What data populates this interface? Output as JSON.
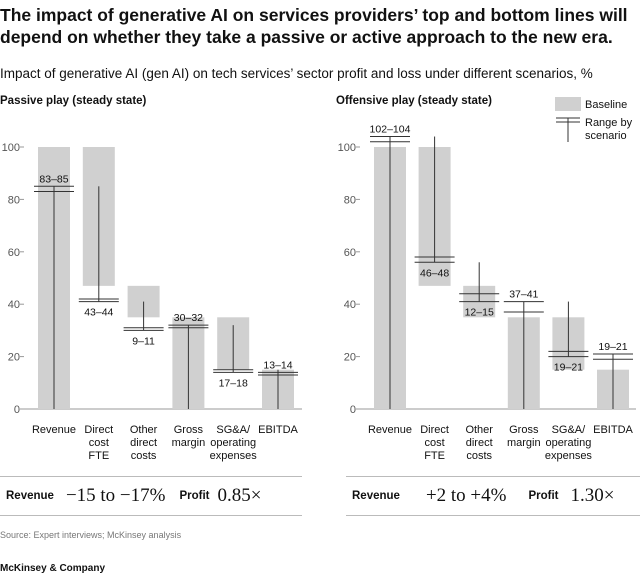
{
  "title": "The impact of generative AI on services providers’ top and bottom lines will depend on whether they take a passive or active approach to the new era.",
  "subtitle": "Impact of generative AI (gen AI) on tech services’ sector profit and loss under different scenarios, %",
  "legend": {
    "baseline": "Baseline",
    "range_line1": "Range by",
    "range_line2": "scenario"
  },
  "colors": {
    "baseline_bar": "#d0d0d0",
    "range_line": "#333333",
    "axis": "#999999"
  },
  "chart_data": [
    {
      "type": "bar",
      "title": "Passive play (steady state)",
      "ylim": [
        0,
        100
      ],
      "yticks": [
        "0",
        "20",
        "40",
        "60",
        "80",
        "100"
      ],
      "categories": [
        [
          "Revenue"
        ],
        [
          "Direct",
          "cost",
          "FTE"
        ],
        [
          "Other",
          "direct",
          "costs"
        ],
        [
          "Gross",
          "margin"
        ],
        [
          "SG&A/",
          "operating",
          "expenses"
        ],
        [
          "EBITDA"
        ]
      ],
      "baseline": [
        {
          "bottom": 0,
          "top": 100
        },
        {
          "bottom": 47,
          "top": 100
        },
        {
          "bottom": 35,
          "top": 47
        },
        {
          "bottom": 0,
          "top": 35
        },
        {
          "bottom": 15,
          "top": 35
        },
        {
          "bottom": 0,
          "top": 15
        }
      ],
      "ranges": [
        {
          "low": 0,
          "high": 85,
          "lines": [
            83,
            85
          ],
          "label": "83–85",
          "label_pos": "below_high"
        },
        {
          "low": 41,
          "high": 85,
          "lines": [
            41,
            42
          ],
          "label": "43–44",
          "label_pos": "below_low"
        },
        {
          "low": 30,
          "high": 41,
          "lines": [
            30,
            31
          ],
          "label": "9–11",
          "label_pos": "below_low"
        },
        {
          "low": 0,
          "high": 32,
          "lines": [
            31,
            32
          ],
          "label": "30–32",
          "label_pos": "above_high"
        },
        {
          "low": 14,
          "high": 32,
          "lines": [
            14,
            15
          ],
          "label": "17–18",
          "label_pos": "below_low"
        },
        {
          "low": 0,
          "high": 15,
          "lines": [
            13,
            14
          ],
          "label": "13–14",
          "label_pos": "above_high"
        }
      ],
      "summary": {
        "revenue_label": "Revenue",
        "revenue_value": "−15 to −17%",
        "profit_label": "Profit",
        "profit_value": "0.85×"
      }
    },
    {
      "type": "bar",
      "title": "Offensive play (steady state)",
      "ylim": [
        0,
        100
      ],
      "yticks": [
        "0",
        "20",
        "40",
        "60",
        "80",
        "100"
      ],
      "categories": [
        [
          "Revenue"
        ],
        [
          "Direct",
          "cost",
          "FTE"
        ],
        [
          "Other",
          "direct",
          "costs"
        ],
        [
          "Gross",
          "margin"
        ],
        [
          "SG&A/",
          "operating",
          "expenses"
        ],
        [
          "EBITDA"
        ]
      ],
      "baseline": [
        {
          "bottom": 0,
          "top": 100
        },
        {
          "bottom": 47,
          "top": 100
        },
        {
          "bottom": 35,
          "top": 47
        },
        {
          "bottom": 0,
          "top": 35
        },
        {
          "bottom": 15,
          "top": 35
        },
        {
          "bottom": 0,
          "top": 15
        }
      ],
      "ranges": [
        {
          "low": 0,
          "high": 104,
          "lines": [
            102,
            104
          ],
          "label": "102–104",
          "label_pos": "above_high"
        },
        {
          "low": 56,
          "high": 104,
          "lines": [
            56,
            58
          ],
          "label": "46–48",
          "label_pos": "below_low"
        },
        {
          "low": 41,
          "high": 56,
          "lines": [
            41,
            44
          ],
          "label": "12–15",
          "label_pos": "below_low"
        },
        {
          "low": 0,
          "high": 41,
          "lines": [
            37,
            41
          ],
          "label": "37–41",
          "label_pos": "above_high"
        },
        {
          "low": 20,
          "high": 41,
          "lines": [
            20,
            22
          ],
          "label": "19–21",
          "label_pos": "below_low"
        },
        {
          "low": 0,
          "high": 21,
          "lines": [
            19,
            21
          ],
          "label": "19–21",
          "label_pos": "above_high"
        }
      ],
      "summary": {
        "revenue_label": "Revenue",
        "revenue_value": "+2 to +4%",
        "profit_label": "Profit",
        "profit_value": "1.30×"
      }
    }
  ],
  "footer": {
    "source": "Source: Expert interviews; McKinsey analysis",
    "brand": "McKinsey & Company"
  }
}
